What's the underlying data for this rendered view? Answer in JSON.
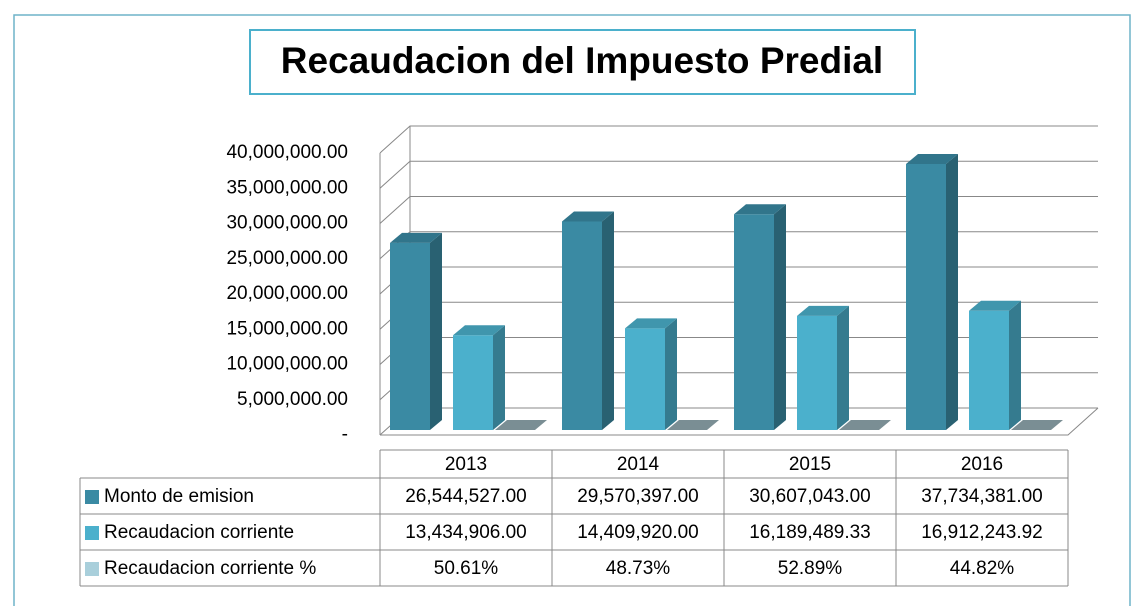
{
  "chart_data": {
    "type": "bar3d",
    "title": "Recaudacion del Impuesto Predial",
    "categories": [
      "2013",
      "2014",
      "2015",
      "2016"
    ],
    "series": [
      {
        "name": "Monto de emision",
        "color": "#3a8aa3",
        "values": [
          26544527,
          29570397,
          30607043,
          37734381
        ],
        "value_labels": [
          "26,544,527.00",
          "29,570,397.00",
          "30,607,043.00",
          "37,734,381.00"
        ]
      },
      {
        "name": "Recaudacion corriente",
        "color": "#4bb0cc",
        "values": [
          13434906,
          14409920,
          16189489.33,
          16912243.92
        ],
        "value_labels": [
          "13,434,906.00",
          "14,409,920.00",
          "16,189,489.33",
          "16,912,243.92"
        ]
      },
      {
        "name": "Recaudacion corriente %",
        "color": "#a9cfdb",
        "values": [
          50.61,
          48.73,
          52.89,
          44.82
        ],
        "value_labels": [
          "50.61%",
          "48.73%",
          "52.89%",
          "44.82%"
        ]
      }
    ],
    "ylim": [
      0,
      40000000
    ],
    "yticks": [
      {
        "value": 0,
        "label": "-"
      },
      {
        "value": 5000000,
        "label": "5,000,000.00"
      },
      {
        "value": 10000000,
        "label": "10,000,000.00"
      },
      {
        "value": 15000000,
        "label": "15,000,000.00"
      },
      {
        "value": 20000000,
        "label": "20,000,000.00"
      },
      {
        "value": 25000000,
        "label": "25,000,000.00"
      },
      {
        "value": 30000000,
        "label": "30,000,000.00"
      },
      {
        "value": 35000000,
        "label": "35,000,000.00"
      },
      {
        "value": 40000000,
        "label": "40,000,000.00"
      }
    ],
    "grid": true
  }
}
